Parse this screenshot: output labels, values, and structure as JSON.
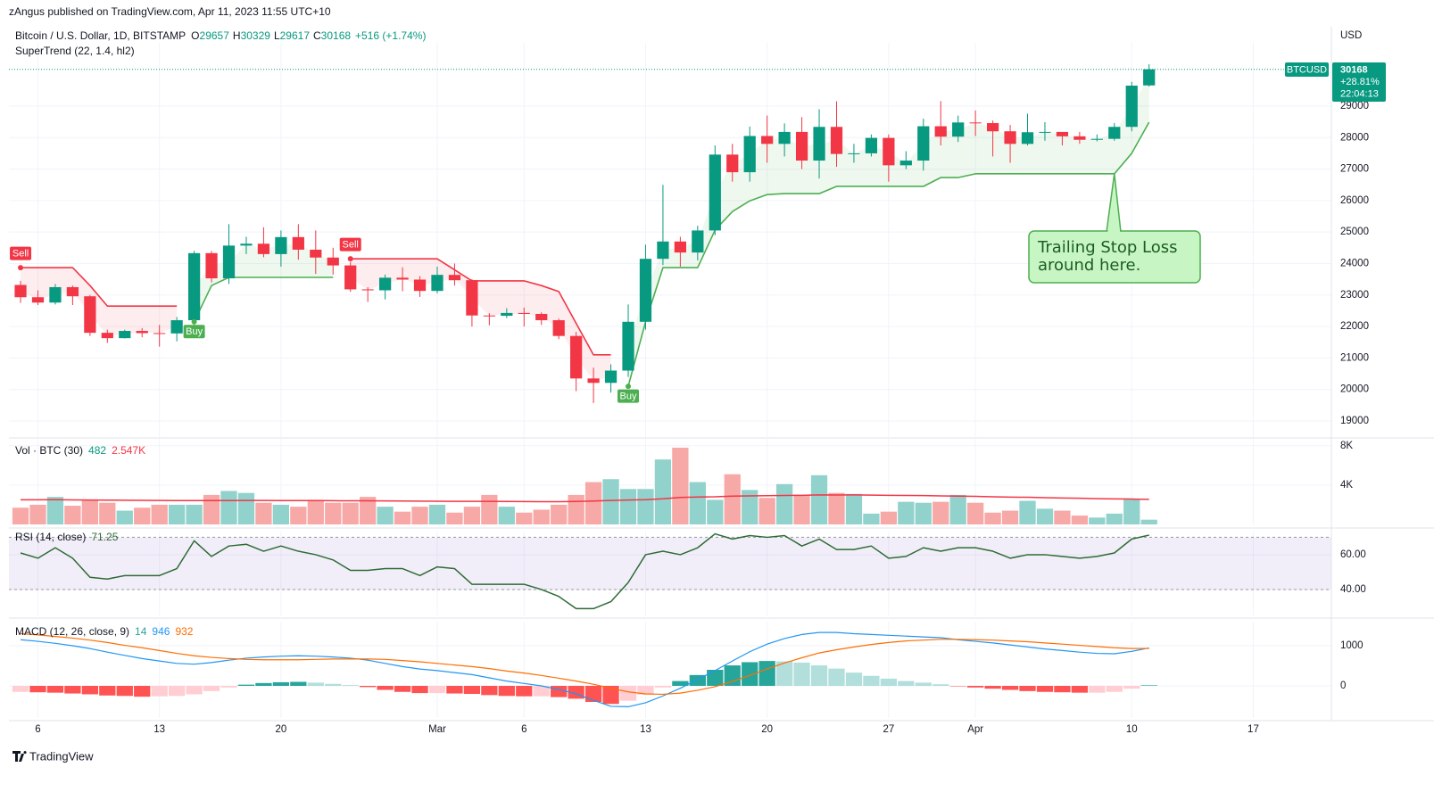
{
  "header": "zAngus published on TradingView.com, Apr 11, 2023 11:55 UTC+10",
  "footer": "TradingView",
  "chart_data": [
    {
      "type": "candlestick",
      "title": "Bitcoin / U.S. Dollar, 1D, BITSTAMP",
      "ohlc_labels": [
        "O",
        "H",
        "L",
        "C"
      ],
      "change_label": "+516 (+1.74%)",
      "indicator": "SuperTrend (22, 1.4, hl2)",
      "unit": "USD",
      "symbol": "BTCUSD",
      "change_pct_label": "+28.81%",
      "countdown": "22:04:13",
      "open": [
        23320,
        22930,
        22760,
        23250,
        22960,
        21800,
        21630,
        21860,
        21790,
        21780,
        22200,
        24330,
        23530,
        24570,
        24630,
        24300,
        24840,
        24440,
        24190,
        23940,
        23180,
        23150,
        23550,
        23490,
        23130,
        23640,
        23470,
        22350,
        22340,
        22430,
        22400,
        22200,
        21700,
        20350,
        20210,
        20600,
        22150,
        24150,
        24700,
        24350,
        25050,
        27460,
        26900,
        28050,
        27800,
        28180,
        27270,
        28340,
        27480,
        27500,
        27990,
        27120,
        27270,
        28360,
        28030,
        28480,
        28460,
        28200,
        27800,
        28170,
        28180,
        28040,
        27930,
        27960,
        28340,
        29657
      ],
      "high": [
        23450,
        23150,
        23350,
        23300,
        23000,
        21900,
        21900,
        21950,
        22050,
        22300,
        24400,
        24400,
        25250,
        24850,
        25150,
        25050,
        25250,
        25050,
        24500,
        24050,
        23250,
        23650,
        23880,
        23600,
        23900,
        24000,
        23500,
        22420,
        22580,
        22600,
        22450,
        22250,
        21830,
        20690,
        20800,
        22700,
        24600,
        26500,
        24850,
        25200,
        27750,
        27800,
        28350,
        28700,
        28450,
        28650,
        28900,
        29150,
        27800,
        28100,
        28100,
        27570,
        28600,
        29160,
        28700,
        28860,
        28540,
        28400,
        28760,
        28490,
        28140,
        28180,
        28100,
        28460,
        29770,
        30329
      ],
      "low": [
        22750,
        22680,
        22700,
        22680,
        21700,
        21480,
        21620,
        21660,
        21360,
        21530,
        22050,
        23400,
        23350,
        24300,
        24200,
        23900,
        24120,
        23670,
        23650,
        23100,
        22780,
        22860,
        23120,
        22940,
        23050,
        23300,
        22000,
        22040,
        22270,
        22000,
        22050,
        21600,
        19950,
        19570,
        19900,
        20400,
        21900,
        23950,
        23900,
        24100,
        24900,
        26600,
        26600,
        27200,
        27400,
        27000,
        26700,
        27070,
        27200,
        27400,
        26600,
        27000,
        26950,
        27750,
        27860,
        28050,
        27400,
        27200,
        27750,
        27900,
        27750,
        27800,
        27880,
        27900,
        28200,
        29617
      ],
      "close": [
        22930,
        22760,
        23250,
        22960,
        21800,
        21630,
        21860,
        21790,
        21780,
        22200,
        24330,
        23530,
        24570,
        24630,
        24300,
        24840,
        24440,
        24190,
        23940,
        23180,
        23150,
        23550,
        23490,
        23130,
        23640,
        23470,
        22350,
        22340,
        22430,
        22400,
        22200,
        21700,
        20350,
        20210,
        20600,
        22150,
        24150,
        24700,
        24350,
        25050,
        27460,
        26900,
        28050,
        27800,
        28180,
        27270,
        28340,
        27480,
        27500,
        27990,
        27120,
        27270,
        28360,
        28030,
        28480,
        28460,
        28200,
        27800,
        28170,
        28180,
        28040,
        27930,
        27960,
        28340,
        29650,
        30168
      ],
      "up_color": "#089981",
      "down_color": "#f23645",
      "supertrend_up": {
        "color": "#4caf50",
        "values": [
          null,
          null,
          null,
          null,
          null,
          null,
          null,
          null,
          null,
          null,
          22150,
          23300,
          23560,
          23560,
          23560,
          23560,
          23560,
          23560,
          23560,
          null,
          null,
          null,
          null,
          null,
          null,
          null,
          null,
          null,
          null,
          null,
          null,
          null,
          null,
          null,
          null,
          20100,
          22150,
          23870,
          23870,
          23870,
          25060,
          25650,
          25990,
          26190,
          26220,
          26220,
          26220,
          26450,
          26450,
          26450,
          26450,
          26450,
          26450,
          26730,
          26730,
          26850,
          26850,
          26850,
          26850,
          26850,
          26850,
          26850,
          26850,
          26850,
          27500,
          28490
        ]
      },
      "supertrend_down": {
        "color": "#f23645",
        "values": [
          23870,
          23870,
          23870,
          23870,
          23300,
          22650,
          22650,
          22650,
          22650,
          22650,
          null,
          null,
          null,
          null,
          null,
          null,
          null,
          null,
          null,
          24150,
          24150,
          24150,
          24150,
          24150,
          24150,
          23800,
          23450,
          23450,
          23450,
          23450,
          23300,
          23110,
          22100,
          21100,
          21100,
          null,
          null,
          null,
          null,
          null,
          null,
          null,
          null,
          null,
          null,
          null,
          null,
          null,
          null,
          null,
          null,
          null,
          null,
          null,
          null,
          null,
          null,
          null,
          null,
          null,
          null,
          null,
          null,
          null,
          null,
          null
        ]
      },
      "signals": [
        {
          "label": "Sell",
          "x": 0,
          "color": "#f23645"
        },
        {
          "label": "Buy",
          "x": 10,
          "color": "#4caf50"
        },
        {
          "label": "Sell",
          "x": 19,
          "color": "#f23645"
        },
        {
          "label": "Buy",
          "x": 35,
          "color": "#4caf50"
        }
      ],
      "annotation": {
        "lines": [
          "Trailing Stop Loss",
          "around here."
        ],
        "x": 63
      },
      "xlim": [
        -0.67,
        75.5
      ],
      "xticks": [
        {
          "value": 1,
          "label": "6"
        },
        {
          "value": 8,
          "label": "13"
        },
        {
          "value": 15,
          "label": "20"
        },
        {
          "value": 24,
          "label": "Mar"
        },
        {
          "value": 29,
          "label": "6"
        },
        {
          "value": 36,
          "label": "13"
        },
        {
          "value": 43,
          "label": "20"
        },
        {
          "value": 50,
          "label": "27"
        },
        {
          "value": 55,
          "label": "Apr"
        },
        {
          "value": 64,
          "label": "10"
        },
        {
          "value": 71,
          "label": "17"
        }
      ],
      "ylim": [
        18490,
        31010
      ],
      "yticks": [
        19000,
        20000,
        21000,
        22000,
        23000,
        24000,
        25000,
        26000,
        27000,
        28000,
        29000
      ],
      "grid": true
    },
    {
      "type": "bar",
      "title": "Vol · BTC (30)",
      "values": [
        1700,
        2000,
        2800,
        1900,
        2500,
        2200,
        1400,
        1700,
        2000,
        2000,
        2000,
        3000,
        3400,
        3200,
        2200,
        2000,
        1800,
        2500,
        2200,
        2200,
        2800,
        1800,
        1300,
        1800,
        2000,
        1200,
        1800,
        3000,
        1800,
        1200,
        1500,
        2000,
        3000,
        4300,
        4600,
        3600,
        3600,
        6600,
        7800,
        4300,
        2500,
        5100,
        3500,
        2700,
        4100,
        3000,
        5000,
        3200,
        3100,
        1100,
        1300,
        2300,
        2200,
        2300,
        3000,
        2200,
        1200,
        1400,
        2400,
        1600,
        1400,
        900,
        700,
        1100,
        2600,
        482
      ],
      "up_color": "#92d2cc",
      "down_color": "#f7a9a7",
      "ma": {
        "color": "#f23645",
        "value_label": "2.547K",
        "values": [
          2500,
          2500,
          2510,
          2490,
          2480,
          2470,
          2460,
          2450,
          2440,
          2430,
          2420,
          2420,
          2430,
          2440,
          2440,
          2430,
          2420,
          2420,
          2410,
          2400,
          2400,
          2390,
          2380,
          2370,
          2360,
          2350,
          2340,
          2340,
          2330,
          2320,
          2310,
          2310,
          2330,
          2380,
          2440,
          2480,
          2510,
          2600,
          2740,
          2790,
          2810,
          2880,
          2900,
          2920,
          2950,
          2960,
          3000,
          2990,
          3000,
          2980,
          2960,
          2950,
          2930,
          2900,
          2880,
          2850,
          2810,
          2780,
          2760,
          2720,
          2690,
          2660,
          2620,
          2590,
          2580,
          2547
        ]
      },
      "ylim": [
        0,
        8700
      ],
      "yticks": [
        {
          "value": 4000,
          "label": "4K"
        },
        {
          "value": 8000,
          "label": "8K"
        }
      ],
      "grid": true
    },
    {
      "type": "line",
      "title": "RSI (14, close)",
      "color": "#2e6b34",
      "values": [
        61,
        58,
        64,
        58,
        47,
        46,
        48,
        48,
        48,
        52,
        68,
        59,
        65,
        66,
        62,
        65,
        62,
        60,
        57,
        51,
        51,
        52,
        52,
        48,
        53,
        52,
        43,
        43,
        43,
        43,
        40,
        36,
        29,
        29,
        33,
        44,
        60,
        62,
        60,
        64,
        72,
        69,
        71,
        70,
        71,
        65,
        69,
        63,
        63,
        65,
        58,
        59,
        64,
        62,
        64,
        64,
        62,
        58,
        60,
        60,
        59,
        58,
        59,
        61,
        69,
        71.25
      ],
      "band": [
        40,
        70
      ],
      "band_color": "#7e57c2",
      "ylim": [
        25.1,
        73.3
      ],
      "yticks": [
        {
          "value": 40,
          "label": "40.00"
        },
        {
          "value": 60,
          "label": "60.00"
        }
      ],
      "grid": true
    },
    {
      "type": "bar",
      "title": "MACD (12, 26, close, 9)",
      "values": [
        -150,
        -160,
        -170,
        -190,
        -210,
        -240,
        -250,
        -270,
        -260,
        -250,
        -210,
        -130,
        -40,
        30,
        70,
        90,
        100,
        80,
        50,
        20,
        -30,
        -100,
        -150,
        -180,
        -180,
        -190,
        -200,
        -230,
        -250,
        -260,
        -260,
        -280,
        -320,
        -400,
        -450,
        -370,
        -220,
        -40,
        120,
        270,
        400,
        510,
        590,
        620,
        610,
        580,
        510,
        430,
        330,
        250,
        180,
        120,
        80,
        40,
        -10,
        -40,
        -70,
        -100,
        -130,
        -150,
        -160,
        -170,
        -170,
        -150,
        -70,
        14
      ],
      "hist_colors": {
        "grow_above": "#26a69a",
        "fall_above": "#b2dfdb",
        "grow_below": "#ffcdd2",
        "fall_below": "#ff5252"
      },
      "macd": {
        "color": "#2196f3",
        "values": [
          1150,
          1110,
          1060,
          1000,
          930,
          840,
          760,
          680,
          620,
          560,
          540,
          580,
          640,
          690,
          720,
          740,
          750,
          740,
          720,
          690,
          640,
          560,
          480,
          420,
          380,
          330,
          280,
          200,
          120,
          60,
          0,
          -90,
          -200,
          -360,
          -510,
          -520,
          -420,
          -250,
          -60,
          160,
          380,
          620,
          850,
          1040,
          1180,
          1280,
          1330,
          1330,
          1300,
          1280,
          1260,
          1240,
          1220,
          1200,
          1150,
          1110,
          1070,
          1020,
          970,
          920,
          880,
          840,
          810,
          800,
          860,
          946
        ]
      },
      "signal": {
        "color": "#ff6d00",
        "values": [
          1300,
          1270,
          1230,
          1190,
          1140,
          1080,
          1010,
          950,
          880,
          810,
          750,
          710,
          680,
          660,
          650,
          650,
          650,
          660,
          670,
          670,
          670,
          660,
          630,
          600,
          560,
          520,
          480,
          430,
          370,
          320,
          260,
          190,
          120,
          40,
          -60,
          -150,
          -200,
          -210,
          -180,
          -110,
          -20,
          110,
          260,
          420,
          570,
          700,
          820,
          900,
          970,
          1030,
          1080,
          1120,
          1140,
          1160,
          1160,
          1150,
          1140,
          1120,
          1100,
          1070,
          1040,
          1010,
          980,
          950,
          930,
          932
        ]
      },
      "ylim": [
        -800,
        1600
      ],
      "yticks": [
        0,
        1000
      ],
      "grid": true
    }
  ]
}
